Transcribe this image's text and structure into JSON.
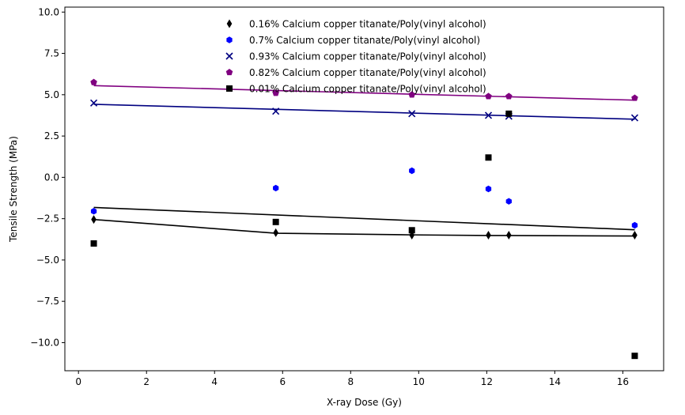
{
  "chart_data": {
    "type": "scatter",
    "title": "",
    "xlabel": "X-ray Dose (Gy)",
    "ylabel": "Tensile Strength (MPa)",
    "xlim": [
      -0.4,
      17.2
    ],
    "ylim": [
      -11.7,
      10.3
    ],
    "xticks": [
      0,
      2,
      4,
      6,
      8,
      10,
      12,
      14,
      16
    ],
    "yticks": [
      -10.0,
      -7.5,
      -5.0,
      -2.5,
      0.0,
      2.5,
      5.0,
      7.5,
      10.0
    ],
    "xtick_labels": [
      "0",
      "2",
      "4",
      "6",
      "8",
      "10",
      "12",
      "14",
      "16"
    ],
    "ytick_labels": [
      "−10.0",
      "−7.5",
      "−5.0",
      "−2.5",
      "0.0",
      "2.5",
      "5.0",
      "7.5",
      "10.0"
    ],
    "grid": false,
    "legend_position": "top-center",
    "series": [
      {
        "name": "0.16% Calcium copper titanate/Poly(vinyl alcohol)",
        "marker": "thin-diamond",
        "color": "#000000",
        "x": [
          0.45,
          5.8,
          9.8,
          12.05,
          12.65,
          16.35
        ],
        "y": [
          -2.55,
          -3.35,
          -3.5,
          -3.5,
          -3.5,
          -3.5
        ],
        "line": {
          "x": [
            0.45,
            5.8,
            9.8,
            12.05,
            12.65,
            16.35
          ],
          "y": [
            -2.55,
            -3.38,
            -3.48,
            -3.52,
            -3.52,
            -3.55
          ],
          "color": "#000000"
        }
      },
      {
        "name": "0.7% Calcium copper titanate/Poly(vinyl alcohol)",
        "marker": "hexagon",
        "color": "#0000ff",
        "x": [
          0.45,
          5.8,
          9.8,
          12.05,
          12.65,
          16.35
        ],
        "y": [
          -2.05,
          -0.65,
          0.4,
          -0.7,
          -1.45,
          -2.9
        ],
        "line": null
      },
      {
        "name": "0.93% Calcium copper titanate/Poly(vinyl alcohol)",
        "marker": "x",
        "color": "#000080",
        "x": [
          0.45,
          5.8,
          9.8,
          12.05,
          12.65,
          16.35
        ],
        "y": [
          4.5,
          4.0,
          3.85,
          3.75,
          3.7,
          3.6
        ],
        "line": {
          "x": [
            0.45,
            16.35
          ],
          "y": [
            4.42,
            3.52
          ],
          "color": "#000080"
        }
      },
      {
        "name": "0.82% Calcium copper titanate/Poly(vinyl alcohol)",
        "marker": "pentagon",
        "color": "#800080",
        "x": [
          0.45,
          5.8,
          9.8,
          12.05,
          12.65,
          16.35
        ],
        "y": [
          5.75,
          5.1,
          5.0,
          4.9,
          4.9,
          4.8
        ],
        "line": {
          "x": [
            0.45,
            16.35
          ],
          "y": [
            5.55,
            4.67
          ],
          "color": "#800080"
        }
      },
      {
        "name": "0.01% Calcium copper titanate/Poly(vinyl alcohol)",
        "marker": "square",
        "color": "#000000",
        "x": [
          0.45,
          5.8,
          9.8,
          12.05,
          12.65,
          16.35
        ],
        "y": [
          -4.0,
          -2.7,
          -3.2,
          1.2,
          3.85,
          -10.8
        ],
        "line": {
          "x": [
            0.45,
            16.35
          ],
          "y": [
            -1.82,
            -3.17
          ],
          "color": "#000000"
        }
      }
    ]
  }
}
